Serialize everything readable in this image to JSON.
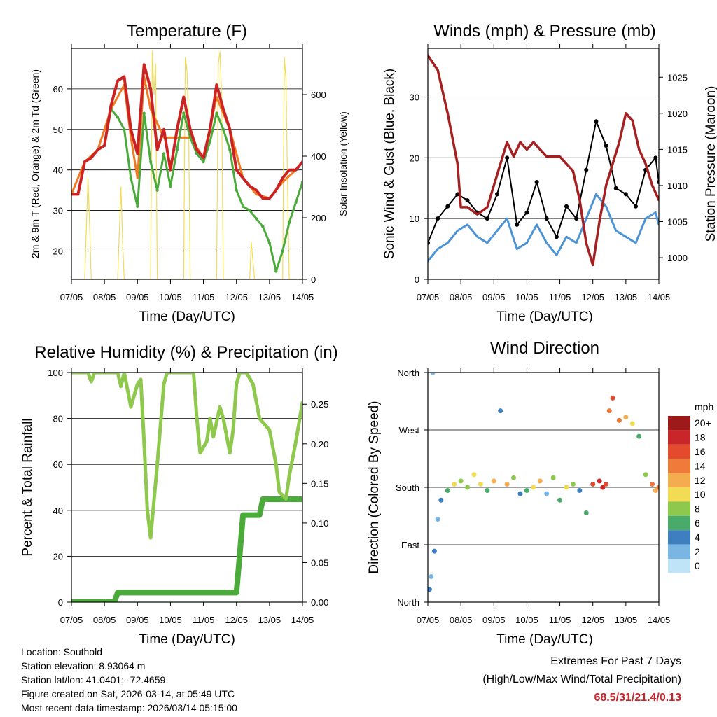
{
  "station_info": {
    "location": "Location: Southold",
    "elevation": "Station elevation: 8.93064 m",
    "latlon": "Station lat/lon: 41.0401; -72.4659",
    "created": "Figure created on Sat, 2026-03-14, at 05:49 UTC",
    "latest": "Most recent data timestamp: 2026/03/14 05:15:00"
  },
  "extremes": {
    "title": "Extremes For Past 7 Days",
    "subtitle": "(High/Low/Max Wind/Total Precipitation)",
    "values": "68.5/31/21.4/0.13",
    "color": "#c8262b"
  },
  "chart_data": [
    {
      "id": "temperature",
      "type": "line",
      "title": "Temperature (F)",
      "xlabel": "Time (Day/UTC)",
      "ylabel": "2m & 9m T (Red, Orange) & 2m Td (Green)",
      "y2label": "Solar Insolation (Yellow)",
      "x_ticks": [
        "07/05",
        "08/05",
        "09/05",
        "10/05",
        "11/05",
        "12/05",
        "13/05",
        "14/05"
      ],
      "xlim": [
        0,
        7
      ],
      "ylim": [
        13,
        70
      ],
      "y_ticks": [
        20,
        30,
        40,
        50,
        60
      ],
      "y2lim": [
        0,
        750
      ],
      "y2_ticks": [
        0,
        200,
        400,
        600
      ],
      "grid": true,
      "series": [
        {
          "name": "2m T",
          "color": "#cc2222",
          "axis": "left",
          "x": [
            0,
            0.2,
            0.4,
            0.6,
            0.8,
            1.0,
            1.2,
            1.4,
            1.6,
            1.8,
            2.0,
            2.2,
            2.4,
            2.6,
            2.8,
            3.0,
            3.2,
            3.4,
            3.6,
            3.8,
            4.0,
            4.2,
            4.4,
            4.6,
            4.8,
            5.0,
            5.2,
            5.4,
            5.6,
            5.8,
            6.0,
            6.2,
            6.4,
            6.6,
            6.8,
            7.0
          ],
          "values": [
            34,
            34,
            42,
            43,
            45,
            46,
            56,
            62,
            63,
            50,
            44,
            66,
            60,
            45,
            50,
            40,
            50,
            58,
            50,
            45,
            43,
            50,
            61,
            55,
            50,
            40,
            38,
            36,
            35,
            33,
            33,
            35,
            38,
            40,
            40,
            42
          ]
        },
        {
          "name": "9m T",
          "color": "#f07a22",
          "axis": "left",
          "x": [
            0,
            0.4,
            0.8,
            1.2,
            1.6,
            1.8,
            2.0,
            2.2,
            2.4,
            2.8,
            3.2,
            3.6,
            4.0,
            4.4,
            4.8,
            5.2,
            5.6,
            6.0,
            6.4,
            6.8,
            7.0
          ],
          "values": [
            34,
            42,
            45,
            55,
            61,
            48,
            38,
            63,
            55,
            48,
            48,
            48,
            43,
            58,
            50,
            38,
            34,
            33,
            37,
            40,
            42
          ]
        },
        {
          "name": "2m Td",
          "color": "#4aaa3a",
          "axis": "left",
          "x": [
            0,
            0.2,
            0.4,
            0.6,
            0.8,
            1.0,
            1.2,
            1.4,
            1.6,
            1.8,
            2.0,
            2.2,
            2.4,
            2.6,
            2.8,
            3.0,
            3.2,
            3.4,
            3.6,
            3.8,
            4.0,
            4.2,
            4.4,
            4.6,
            4.8,
            5.0,
            5.2,
            5.4,
            5.6,
            5.8,
            6.0,
            6.2,
            6.4,
            6.6,
            6.8,
            7.0
          ],
          "values": [
            34,
            34,
            42,
            43,
            45,
            46,
            55,
            53,
            50,
            38,
            31,
            54,
            42,
            35,
            44,
            36,
            45,
            54,
            48,
            44,
            42,
            47,
            54,
            50,
            45,
            35,
            31,
            30,
            28,
            26,
            22,
            15,
            20,
            27,
            32,
            37
          ]
        },
        {
          "name": "Solar Insolation",
          "color": "#f2dc55",
          "axis": "right",
          "x": [
            0,
            0.4,
            0.5,
            0.55,
            0.6,
            1.0,
            1.4,
            1.5,
            1.55,
            1.6,
            2.0,
            2.4,
            2.45,
            2.5,
            2.55,
            2.6,
            3.0,
            3.4,
            3.45,
            3.5,
            3.55,
            3.6,
            4.0,
            4.4,
            4.45,
            4.5,
            4.55,
            4.6,
            5.0,
            5.4,
            5.45,
            5.5,
            5.55,
            5.6,
            6.0,
            6.4,
            6.45,
            6.5,
            6.55,
            6.6,
            7.0
          ],
          "values": [
            0,
            0,
            330,
            180,
            0,
            0,
            0,
            300,
            120,
            0,
            0,
            0,
            740,
            600,
            700,
            0,
            0,
            0,
            720,
            680,
            500,
            0,
            0,
            0,
            700,
            740,
            600,
            0,
            0,
            0,
            120,
            60,
            0,
            0,
            0,
            0,
            720,
            650,
            300,
            0,
            0
          ]
        }
      ]
    },
    {
      "id": "winds",
      "type": "line",
      "title": "Winds (mph) & Pressure (mb)",
      "xlabel": "Time (Day/UTC)",
      "ylabel": "Sonic Wind & Gust (Blue, Black)",
      "y2label": "Station Pressure (Maroon)",
      "x_ticks": [
        "07/05",
        "08/05",
        "09/05",
        "10/05",
        "11/05",
        "12/05",
        "13/05",
        "14/05"
      ],
      "xlim": [
        0,
        7
      ],
      "ylim": [
        0,
        38
      ],
      "y_ticks": [
        0,
        10,
        20,
        30
      ],
      "y2lim": [
        997,
        1029
      ],
      "y2_ticks": [
        1000,
        1005,
        1010,
        1015,
        1020,
        1025
      ],
      "grid": true,
      "series": [
        {
          "name": "Sonic Wind",
          "color": "#4d94d4",
          "axis": "left",
          "x": [
            0,
            0.3,
            0.6,
            0.9,
            1.2,
            1.5,
            1.8,
            2.1,
            2.4,
            2.7,
            3.0,
            3.3,
            3.6,
            3.9,
            4.2,
            4.5,
            4.8,
            5.1,
            5.4,
            5.7,
            6.0,
            6.3,
            6.6,
            6.9,
            7.0
          ],
          "values": [
            3,
            5,
            6,
            8,
            9,
            7,
            6,
            8,
            10,
            5,
            6,
            9,
            6,
            4,
            7,
            6,
            10,
            14,
            12,
            8,
            7,
            6,
            10,
            11,
            9
          ]
        },
        {
          "name": "Gust",
          "color": "#000000",
          "axis": "left",
          "x": [
            0,
            0.3,
            0.6,
            0.9,
            1.2,
            1.5,
            1.8,
            2.1,
            2.4,
            2.7,
            3.0,
            3.3,
            3.6,
            3.9,
            4.2,
            4.5,
            4.8,
            5.1,
            5.4,
            5.7,
            6.0,
            6.3,
            6.6,
            6.9,
            7.0
          ],
          "values": [
            6,
            10,
            12,
            14,
            13,
            11,
            10,
            14,
            20,
            9,
            11,
            16,
            10,
            7,
            12,
            10,
            18,
            26,
            22,
            15,
            14,
            12,
            18,
            20,
            16
          ]
        },
        {
          "name": "Station Pressure",
          "color": "#a52121",
          "axis": "right",
          "x": [
            0,
            0.3,
            0.6,
            0.9,
            1.0,
            1.2,
            1.5,
            1.8,
            2.0,
            2.2,
            2.4,
            2.6,
            2.8,
            3.0,
            3.2,
            3.4,
            3.6,
            3.8,
            4.0,
            4.2,
            4.4,
            4.6,
            4.8,
            5.0,
            5.2,
            5.4,
            5.6,
            5.8,
            6.0,
            6.2,
            6.4,
            6.6,
            6.8,
            7.0
          ],
          "values": [
            1028,
            1026,
            1020,
            1013,
            1007,
            1007,
            1006,
            1007,
            1010,
            1013,
            1016,
            1014,
            1016,
            1015,
            1016,
            1015,
            1014,
            1014,
            1014,
            1013,
            1012,
            1008,
            1002,
            999,
            1005,
            1010,
            1013,
            1016,
            1020,
            1019,
            1015,
            1013,
            1010,
            1008
          ]
        }
      ]
    },
    {
      "id": "humidity",
      "type": "line",
      "title": "Relative Humidity (%) & Precipitation (in)",
      "xlabel": "Time (Day/UTC)",
      "ylabel": "Percent & Total Rainfall",
      "x_ticks": [
        "07/05",
        "08/05",
        "09/05",
        "10/05",
        "11/05",
        "12/05",
        "13/05",
        "14/05"
      ],
      "xlim": [
        0,
        7
      ],
      "ylim": [
        0,
        100
      ],
      "y_ticks": [
        0,
        20,
        40,
        60,
        80,
        100
      ],
      "y2lim": [
        0,
        0.29
      ],
      "y2_ticks": [
        "0.00",
        "0.05",
        "0.10",
        "0.15",
        "0.20",
        "0.25"
      ],
      "grid": true,
      "series": [
        {
          "name": "Relative Humidity",
          "color": "#8ec94e",
          "axis": "left",
          "x": [
            0,
            0.5,
            0.6,
            0.7,
            1.0,
            1.4,
            1.5,
            1.6,
            1.8,
            2.0,
            2.1,
            2.2,
            2.3,
            2.4,
            2.6,
            2.8,
            2.9,
            3.0,
            3.2,
            3.5,
            3.7,
            3.8,
            3.9,
            4.1,
            4.2,
            4.3,
            4.5,
            4.6,
            4.8,
            4.9,
            5.0,
            5.1,
            5.3,
            5.5,
            5.7,
            6.0,
            6.2,
            6.3,
            6.5,
            6.6,
            6.8,
            7.0
          ],
          "values": [
            100,
            100,
            96,
            100,
            100,
            100,
            94,
            100,
            85,
            95,
            97,
            70,
            40,
            28,
            60,
            95,
            100,
            100,
            100,
            100,
            100,
            80,
            65,
            70,
            80,
            72,
            85,
            80,
            65,
            75,
            95,
            100,
            100,
            95,
            80,
            75,
            60,
            48,
            45,
            55,
            70,
            87
          ]
        },
        {
          "name": "Total Precipitation",
          "color": "#4aaa3a",
          "axis": "right",
          "x": [
            0,
            1.3,
            1.4,
            5.0,
            5.1,
            5.2,
            5.3,
            5.7,
            5.8,
            6.0,
            7.0
          ],
          "values": [
            0,
            0,
            0.012,
            0.012,
            0.06,
            0.11,
            0.11,
            0.11,
            0.13,
            0.13,
            0.13
          ]
        }
      ]
    },
    {
      "id": "wind_direction",
      "type": "scatter",
      "title": "Wind Direction",
      "xlabel": "Time (Day/UTC)",
      "ylabel": "Direction (Colored By Speed)",
      "x_ticks": [
        "07/05",
        "08/05",
        "09/05",
        "10/05",
        "11/05",
        "12/05",
        "13/05",
        "14/05"
      ],
      "xlim": [
        0,
        7
      ],
      "ylim": [
        0,
        360
      ],
      "y_ticks": [
        "North",
        "East",
        "South",
        "West",
        "North"
      ],
      "y_tick_values": [
        0,
        90,
        180,
        270,
        360
      ],
      "grid": true,
      "legend": {
        "title": "mph",
        "labels": [
          "20+",
          "18",
          "16",
          "14",
          "12",
          "10",
          "8",
          "6",
          "4",
          "2",
          "0"
        ],
        "colors": [
          "#9e1a1a",
          "#c8262b",
          "#e34a2e",
          "#f07a3a",
          "#f4ac4e",
          "#f2dc55",
          "#8ec94e",
          "#4aaa6a",
          "#3f7fbf",
          "#7ab6e4",
          "#bfe3f7"
        ],
        "position": "right"
      },
      "points": {
        "x": [
          0.05,
          0.1,
          0.15,
          0.2,
          0.3,
          0.4,
          0.6,
          0.8,
          1.0,
          1.2,
          1.4,
          1.6,
          1.8,
          2.0,
          2.2,
          2.4,
          2.6,
          2.8,
          3.0,
          3.2,
          3.4,
          3.6,
          3.8,
          4.0,
          4.2,
          4.4,
          4.6,
          4.8,
          5.0,
          5.2,
          5.3,
          5.4,
          5.5,
          5.6,
          5.8,
          6.0,
          6.2,
          6.4,
          6.6,
          6.8,
          6.9,
          7.0
        ],
        "y": [
          20,
          40,
          360,
          80,
          130,
          160,
          175,
          185,
          190,
          180,
          200,
          185,
          175,
          190,
          300,
          185,
          195,
          170,
          175,
          180,
          190,
          170,
          195,
          160,
          180,
          185,
          175,
          140,
          185,
          190,
          180,
          185,
          300,
          320,
          285,
          290,
          280,
          260,
          200,
          185,
          175,
          180
        ],
        "speed": [
          3,
          2,
          1,
          4,
          2,
          3,
          6,
          9,
          8,
          7,
          10,
          9,
          5,
          12,
          4,
          11,
          8,
          3,
          6,
          10,
          12,
          2,
          8,
          6,
          9,
          7,
          3,
          5,
          16,
          18,
          17,
          15,
          14,
          16,
          13,
          12,
          10,
          6,
          8,
          14,
          12,
          13
        ]
      }
    }
  ]
}
